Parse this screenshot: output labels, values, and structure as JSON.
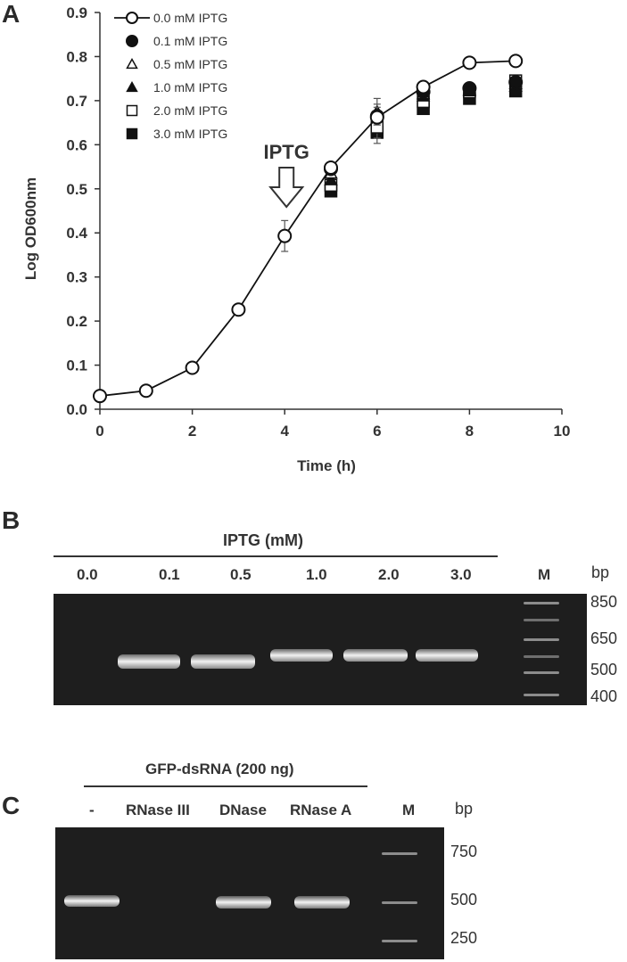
{
  "chart_data": [
    {
      "panel": "A",
      "type": "line",
      "xlabel": "Time (h)",
      "ylabel": "Log OD600nm",
      "xlim": [
        0,
        10
      ],
      "ylim": [
        0,
        0.9
      ],
      "xticks": [
        "0",
        "2",
        "4",
        "6",
        "8",
        "10"
      ],
      "yticks": [
        "0.0",
        "0.1",
        "0.2",
        "0.3",
        "0.4",
        "0.5",
        "0.6",
        "0.7",
        "0.8",
        "0.9"
      ],
      "annotation": "IPTG",
      "annotation_x": 4,
      "legend_position": "top-left",
      "series": [
        {
          "name": "0.0 mM IPTG",
          "marker": "open-circle",
          "line": true,
          "x": [
            0,
            1,
            2,
            3,
            4,
            5,
            6,
            7,
            8,
            9
          ],
          "y": [
            0.03,
            0.042,
            0.094,
            0.226,
            0.393,
            0.548,
            0.662,
            0.731,
            0.786,
            0.79
          ],
          "err": [
            0,
            0,
            0,
            0,
            0.035,
            0.01,
            0.012,
            0.006,
            0.005,
            0.005
          ]
        },
        {
          "name": "0.1 mM IPTG",
          "marker": "filled-circle",
          "line": false,
          "x": [
            5,
            6,
            7,
            8,
            9
          ],
          "y": [
            0.545,
            0.665,
            0.72,
            0.728,
            0.742
          ],
          "err": [
            0.01,
            0.02,
            0.01,
            0.01,
            0.01
          ]
        },
        {
          "name": "0.5 mM IPTG",
          "marker": "open-triangle",
          "line": false,
          "x": [
            5,
            6,
            7,
            8,
            9
          ],
          "y": [
            0.535,
            0.672,
            0.715,
            0.725,
            0.738
          ],
          "err": [
            0.01,
            0.02,
            0.01,
            0.01,
            0.01
          ]
        },
        {
          "name": "1.0 mM IPTG",
          "marker": "filled-triangle",
          "line": false,
          "x": [
            5,
            6,
            7,
            8,
            9
          ],
          "y": [
            0.52,
            0.675,
            0.71,
            0.722,
            0.732
          ],
          "err": [
            0.01,
            0.03,
            0.01,
            0.01,
            0.01
          ]
        },
        {
          "name": "2.0 mM IPTG",
          "marker": "open-square",
          "line": false,
          "x": [
            5,
            6,
            7,
            8,
            9
          ],
          "y": [
            0.508,
            0.64,
            0.698,
            0.72,
            0.745
          ],
          "err": [
            0.01,
            0.025,
            0.01,
            0.01,
            0.01
          ]
        },
        {
          "name": "3.0 mM IPTG",
          "marker": "filled-square",
          "line": false,
          "x": [
            5,
            6,
            7,
            8,
            9
          ],
          "y": [
            0.495,
            0.628,
            0.682,
            0.705,
            0.722
          ],
          "err": [
            0.01,
            0.025,
            0.01,
            0.01,
            0.01
          ]
        }
      ]
    }
  ],
  "panel_b": {
    "letter": "B",
    "group_label": "IPTG (mM)",
    "lanes": [
      "0.0",
      "0.1",
      "0.5",
      "1.0",
      "2.0",
      "3.0"
    ],
    "marker_label": "M",
    "unit": "bp",
    "ladder_sizes": [
      "850",
      "650",
      "500",
      "400"
    ],
    "band_present": [
      false,
      true,
      true,
      true,
      true,
      true
    ]
  },
  "panel_c": {
    "letter": "C",
    "group_label": "GFP-dsRNA (200 ng)",
    "lanes": [
      "-",
      "RNase III",
      "DNase",
      "RNase A"
    ],
    "marker_label": "M",
    "unit": "bp",
    "ladder_sizes": [
      "750",
      "500",
      "250"
    ],
    "band_present": [
      true,
      false,
      true,
      true
    ]
  }
}
